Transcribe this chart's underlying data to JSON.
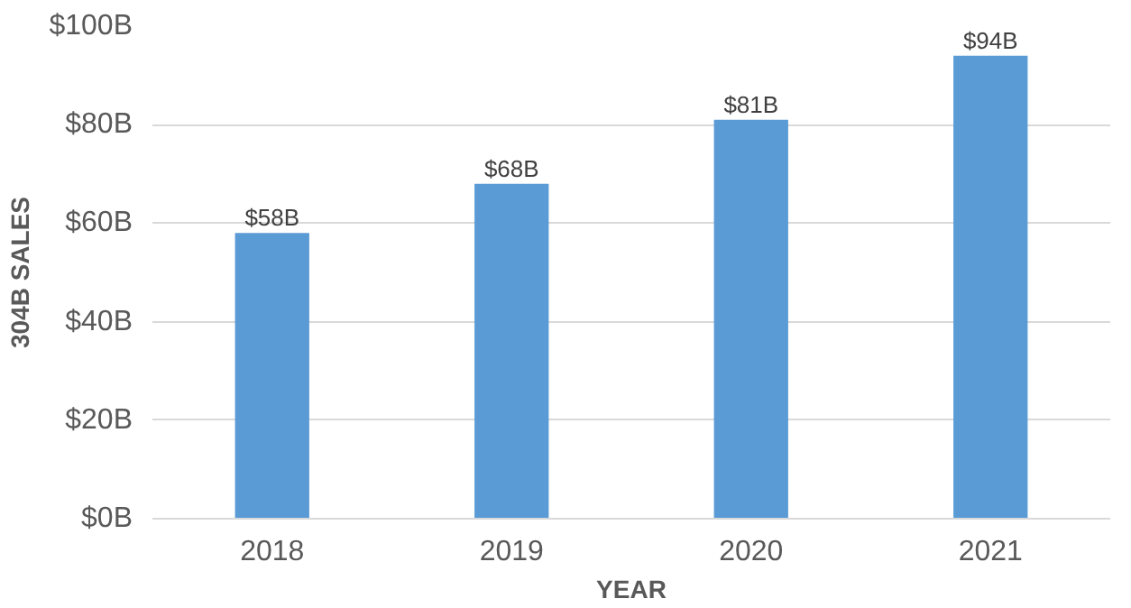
{
  "chart_data": {
    "type": "bar",
    "xlabel": "YEAR",
    "ylabel": "304B SALES",
    "categories": [
      "2018",
      "2019",
      "2020",
      "2021"
    ],
    "values": [
      58,
      68,
      81,
      94
    ],
    "value_labels": [
      "$58B",
      "$68B",
      "$81B",
      "$94B"
    ],
    "color": "#5b9bd5",
    "ylim": [
      0,
      100
    ],
    "yticks": [
      {
        "value": 0,
        "label": "$0B"
      },
      {
        "value": 20,
        "label": "$20B"
      },
      {
        "value": 40,
        "label": "$40B"
      },
      {
        "value": 60,
        "label": "$60B"
      },
      {
        "value": 80,
        "label": "$80B"
      },
      {
        "value": 100,
        "label": "$100B"
      }
    ],
    "grid": "y"
  }
}
